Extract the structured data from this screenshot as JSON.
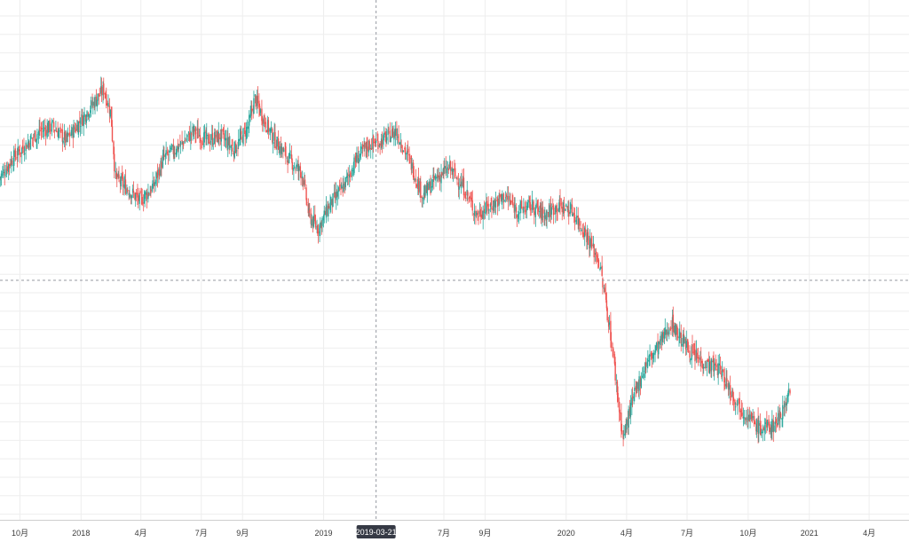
{
  "chart_data": {
    "type": "candlestick",
    "title": "",
    "xlabel": "",
    "ylabel": "",
    "x_ticks": [
      {
        "label": "10月",
        "date": "2017-10-01"
      },
      {
        "label": "2018",
        "date": "2018-01-01"
      },
      {
        "label": "4月",
        "date": "2018-04-01"
      },
      {
        "label": "7月",
        "date": "2018-07-01"
      },
      {
        "label": "9月",
        "date": "2018-09-01"
      },
      {
        "label": "2019",
        "date": "2019-01-01"
      },
      {
        "label": "7月",
        "date": "2019-07-01"
      },
      {
        "label": "9月",
        "date": "2019-09-01"
      },
      {
        "label": "2020",
        "date": "2020-01-01"
      },
      {
        "label": "4月",
        "date": "2020-04-01"
      },
      {
        "label": "7月",
        "date": "2020-07-01"
      },
      {
        "label": "10月",
        "date": "2020-10-01"
      },
      {
        "label": "2021",
        "date": "2021-01-01"
      },
      {
        "label": "4月",
        "date": "2021-04-01"
      }
    ],
    "x_range": [
      "2017-09-01",
      "2021-05-31"
    ],
    "y_range": [
      0,
      100
    ],
    "grid": true,
    "crosshair": {
      "date": "2019-03-21",
      "label": "2019-03-21",
      "y": 46
    },
    "colors": {
      "up": "#26a69a",
      "down": "#ef5350",
      "grid": "#eeeeee",
      "crosshair": "#9598a1",
      "tag_bg": "#363a45"
    },
    "series": [
      {
        "values": [
          [
            "2017-09-01",
            68
          ],
          [
            "2017-09-20",
            72
          ],
          [
            "2017-10-10",
            75
          ],
          [
            "2017-10-31",
            78
          ],
          [
            "2017-11-20",
            79
          ],
          [
            "2017-12-10",
            76
          ],
          [
            "2017-12-31",
            80
          ],
          [
            "2018-01-20",
            84
          ],
          [
            "2018-02-05",
            87
          ],
          [
            "2018-02-15",
            82
          ],
          [
            "2018-02-22",
            68
          ],
          [
            "2018-03-10",
            66
          ],
          [
            "2018-03-31",
            63
          ],
          [
            "2018-04-20",
            66
          ],
          [
            "2018-05-05",
            72
          ],
          [
            "2018-05-31",
            75
          ],
          [
            "2018-06-20",
            78
          ],
          [
            "2018-07-10",
            76
          ],
          [
            "2018-07-31",
            77
          ],
          [
            "2018-08-20",
            74
          ],
          [
            "2018-09-10",
            79
          ],
          [
            "2018-09-20",
            85
          ],
          [
            "2018-10-05",
            80
          ],
          [
            "2018-10-20",
            76
          ],
          [
            "2018-11-10",
            72
          ],
          [
            "2018-11-30",
            69
          ],
          [
            "2018-12-10",
            60
          ],
          [
            "2018-12-24",
            57
          ],
          [
            "2019-01-10",
            62
          ],
          [
            "2019-01-31",
            66
          ],
          [
            "2019-02-20",
            72
          ],
          [
            "2019-03-10",
            75
          ],
          [
            "2019-03-31",
            76
          ],
          [
            "2019-04-20",
            78
          ],
          [
            "2019-05-10",
            72
          ],
          [
            "2019-05-31",
            64
          ],
          [
            "2019-06-20",
            68
          ],
          [
            "2019-07-10",
            70
          ],
          [
            "2019-07-31",
            66
          ],
          [
            "2019-08-20",
            60
          ],
          [
            "2019-09-10",
            62
          ],
          [
            "2019-10-01",
            64
          ],
          [
            "2019-10-20",
            61
          ],
          [
            "2019-11-10",
            62
          ],
          [
            "2019-11-30",
            60
          ],
          [
            "2019-12-20",
            62
          ],
          [
            "2020-01-10",
            61
          ],
          [
            "2020-01-31",
            56
          ],
          [
            "2020-02-20",
            50
          ],
          [
            "2020-03-05",
            38
          ],
          [
            "2020-03-12",
            30
          ],
          [
            "2020-03-20",
            20
          ],
          [
            "2020-03-27",
            12
          ],
          [
            "2020-04-10",
            20
          ],
          [
            "2020-04-30",
            28
          ],
          [
            "2020-05-20",
            32
          ],
          [
            "2020-06-08",
            37
          ],
          [
            "2020-06-20",
            34
          ],
          [
            "2020-07-10",
            30
          ],
          [
            "2020-07-31",
            28
          ],
          [
            "2020-08-20",
            27
          ],
          [
            "2020-09-10",
            21
          ],
          [
            "2020-09-30",
            17
          ],
          [
            "2020-10-20",
            14
          ],
          [
            "2020-11-10",
            15
          ],
          [
            "2020-11-25",
            19
          ],
          [
            "2020-12-03",
            23
          ]
        ]
      }
    ]
  }
}
